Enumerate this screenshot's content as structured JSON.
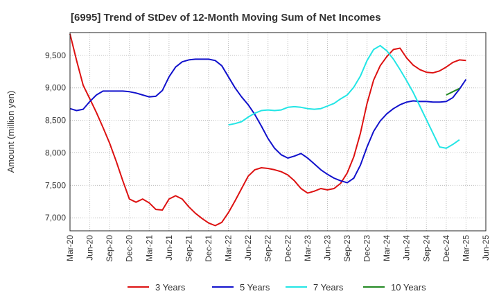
{
  "chart_data": {
    "type": "line",
    "title": "[6995]  Trend of StDev of 12-Month Moving Sum of Net Incomes",
    "ylabel": "Amount (million yen)",
    "xlabel": "",
    "ylim": [
      6800,
      9850
    ],
    "yticks": [
      7000,
      7500,
      8000,
      8500,
      9000,
      9500
    ],
    "ytick_labels": [
      "7,000",
      "7,500",
      "8,000",
      "8,500",
      "9,000",
      "9,500"
    ],
    "x_start": "2020-03",
    "x_end": "2025-06",
    "xtick_labels": [
      "Mar-20",
      "Jun-20",
      "Sep-20",
      "Dec-20",
      "Mar-21",
      "Jun-21",
      "Sep-21",
      "Dec-21",
      "Mar-22",
      "Jun-22",
      "Sep-22",
      "Dec-22",
      "Mar-23",
      "Jun-23",
      "Sep-23",
      "Dec-23",
      "Mar-24",
      "Jun-24",
      "Sep-24",
      "Dec-24",
      "Mar-25",
      "Jun-25"
    ],
    "grid": true,
    "legend_position": "bottom",
    "series": [
      {
        "name": "3 Years",
        "color": "#dd1111",
        "start": "2020-03",
        "values": [
          9830,
          9420,
          9040,
          8830,
          8620,
          8390,
          8150,
          7870,
          7570,
          7290,
          7240,
          7290,
          7230,
          7130,
          7120,
          7290,
          7340,
          7290,
          7170,
          7070,
          6990,
          6920,
          6880,
          6930,
          7080,
          7260,
          7450,
          7640,
          7740,
          7770,
          7760,
          7740,
          7710,
          7660,
          7570,
          7450,
          7380,
          7410,
          7450,
          7430,
          7450,
          7530,
          7690,
          7940,
          8300,
          8760,
          9120,
          9340,
          9480,
          9590,
          9610,
          9460,
          9350,
          9280,
          9240,
          9230,
          9260,
          9320,
          9390,
          9430,
          9420
        ]
      },
      {
        "name": "5 Years",
        "color": "#1111cc",
        "start": "2020-03",
        "values": [
          8680,
          8650,
          8670,
          8790,
          8890,
          8950,
          8950,
          8950,
          8950,
          8940,
          8920,
          8890,
          8860,
          8870,
          8960,
          9170,
          9320,
          9400,
          9430,
          9440,
          9440,
          9440,
          9420,
          9340,
          9170,
          9000,
          8860,
          8740,
          8590,
          8410,
          8220,
          8070,
          7970,
          7920,
          7950,
          7990,
          7920,
          7830,
          7740,
          7670,
          7610,
          7570,
          7540,
          7610,
          7810,
          8090,
          8330,
          8490,
          8600,
          8680,
          8740,
          8780,
          8800,
          8790,
          8790,
          8780,
          8780,
          8790,
          8850,
          8980,
          9130
        ]
      },
      {
        "name": "7 Years",
        "color": "#22e5e5",
        "start": "2022-03",
        "values": [
          8430,
          8450,
          8480,
          8550,
          8610,
          8650,
          8660,
          8650,
          8660,
          8700,
          8710,
          8700,
          8680,
          8670,
          8680,
          8720,
          8760,
          8830,
          8890,
          9010,
          9180,
          9420,
          9590,
          9650,
          9570,
          9440,
          9280,
          9110,
          8930,
          8720,
          8510,
          8300,
          8090,
          8070,
          8130,
          8200
        ]
      },
      {
        "name": "10 Years",
        "color": "#228822",
        "start": "2024-12",
        "values": [
          8890,
          8940,
          8990
        ]
      }
    ]
  }
}
